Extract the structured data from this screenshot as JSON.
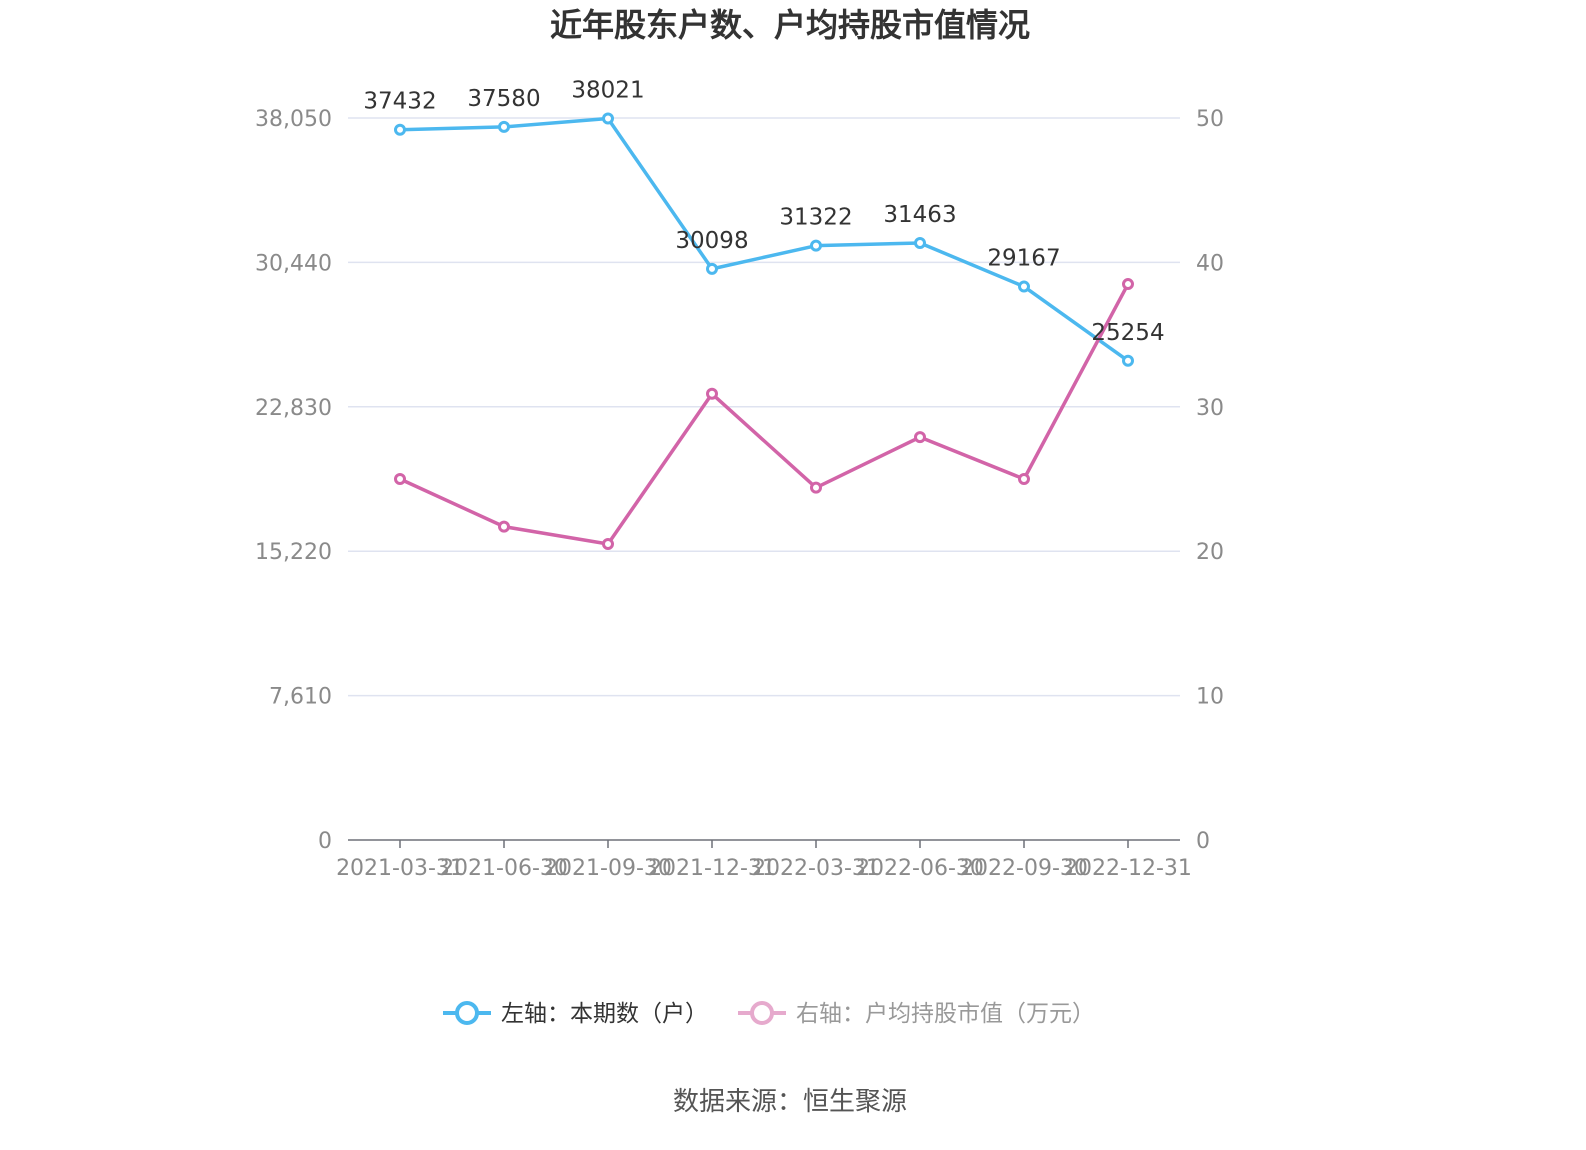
{
  "chart_data": {
    "type": "line",
    "title": "近年股东户数、户均持股市值情况",
    "categories": [
      "2021-03-31",
      "2021-06-30",
      "2021-09-30",
      "2021-12-31",
      "2022-03-31",
      "2022-06-30",
      "2022-09-30",
      "2022-12-31"
    ],
    "y_left": {
      "ticks": [
        "0",
        "7,610",
        "15,220",
        "22,830",
        "30,440",
        "38,050"
      ],
      "range": [
        0,
        38050
      ]
    },
    "y_right": {
      "ticks": [
        "0",
        "10",
        "20",
        "30",
        "40",
        "50"
      ],
      "range": [
        0,
        50
      ]
    },
    "series": [
      {
        "name": "左轴：本期数（户）",
        "axis": "left",
        "color": "#4cb8ef",
        "values": [
          37432,
          37580,
          38021,
          30098,
          31322,
          31463,
          29167,
          25254
        ],
        "labels": [
          "37432",
          "37580",
          "38021",
          "30098",
          "31322",
          "31463",
          "29167",
          "25254"
        ]
      },
      {
        "name": "右轴：户均持股市值（万元）",
        "axis": "right",
        "color": "#d264a8",
        "values": [
          25.0,
          21.7,
          20.5,
          30.9,
          24.4,
          27.9,
          25.0,
          38.5
        ]
      }
    ],
    "legend": "bottom-center",
    "grid": true
  },
  "source": "数据来源：恒生聚源"
}
